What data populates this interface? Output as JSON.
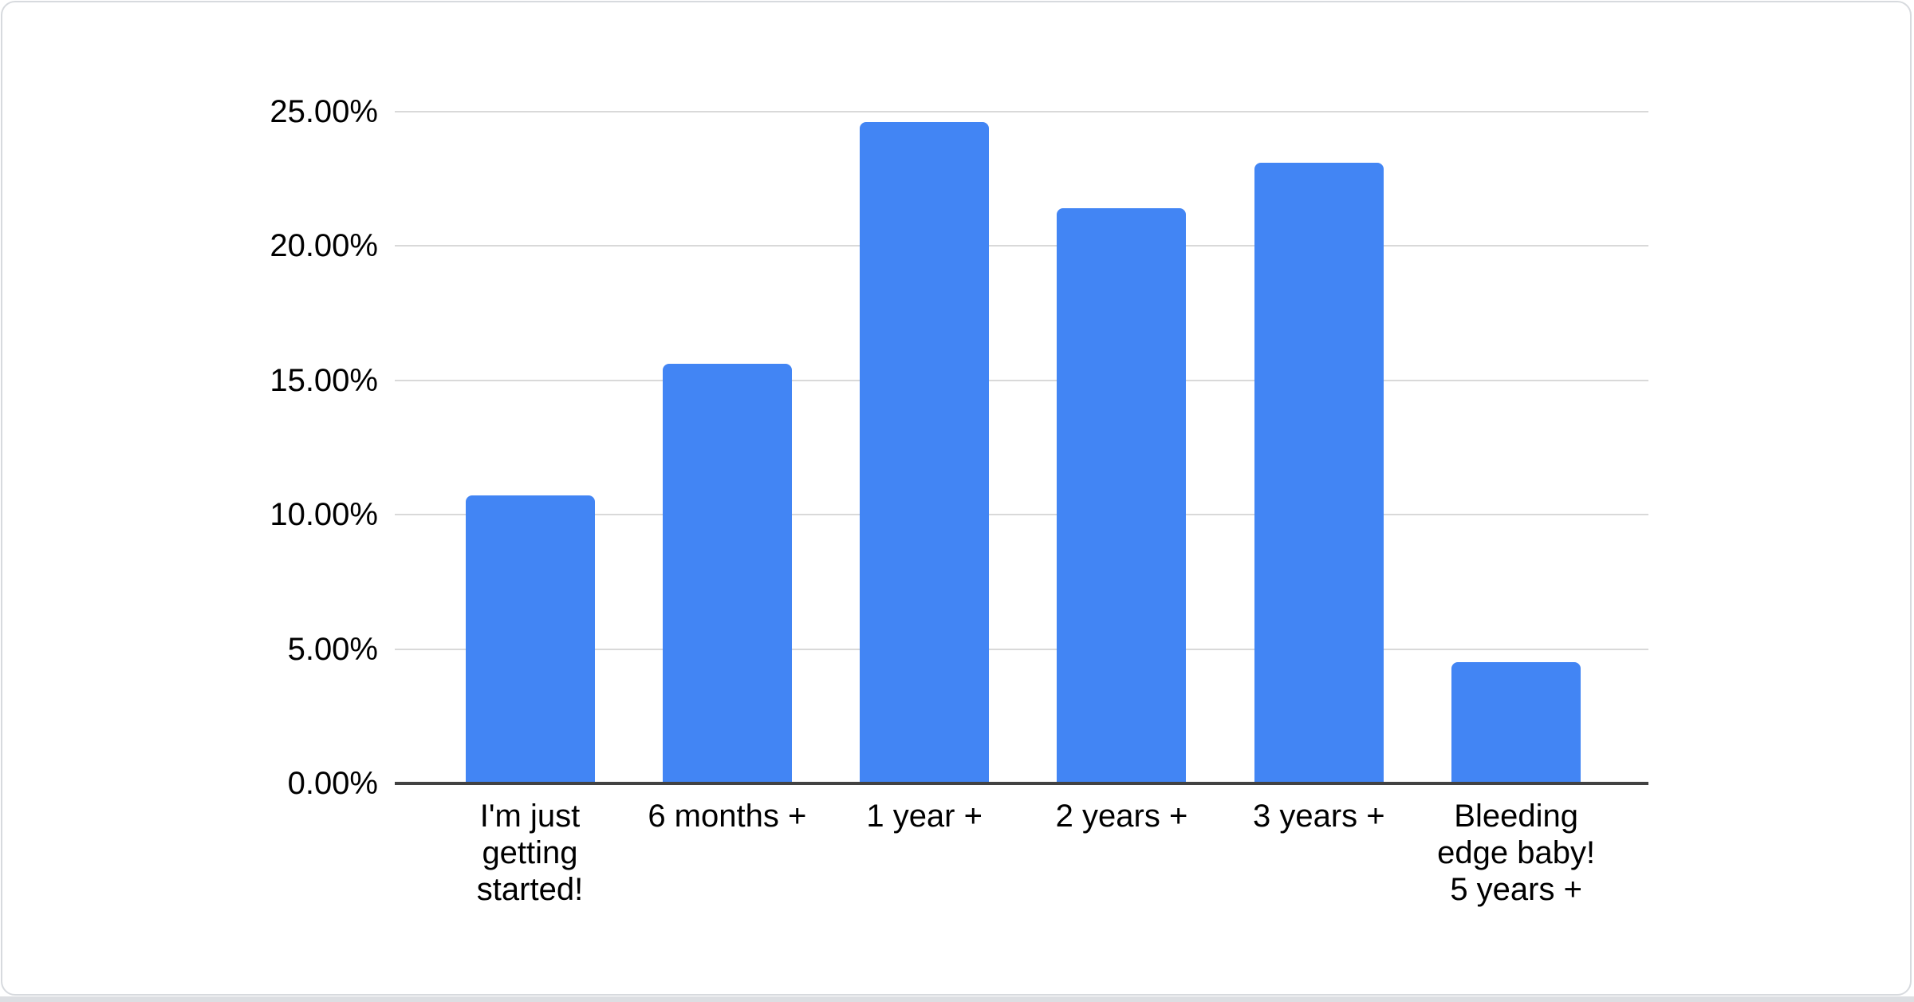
{
  "chart_data": {
    "type": "bar",
    "title": "",
    "categories": [
      "I'm just getting started!",
      "6 months +",
      "1 year +",
      "2 years +",
      "3 years +",
      "Bleeding edge baby! 5 years +"
    ],
    "categories_display": [
      "I'm just\ngetting\nstarted!",
      "6 months +",
      "1 year +",
      "2 years +",
      "3 years +",
      "Bleeding\nedge baby!\n5 years +"
    ],
    "values": [
      10.7,
      15.6,
      24.6,
      21.4,
      23.1,
      4.5
    ],
    "value_unit": "%",
    "y_ticks": [
      "0.00%",
      "5.00%",
      "10.00%",
      "15.00%",
      "20.00%",
      "25.00%"
    ],
    "y_tick_values": [
      0,
      5,
      10,
      15,
      20,
      25
    ],
    "ylim": [
      0,
      25
    ],
    "xlabel": "",
    "ylabel": "",
    "grid": true,
    "legend_position": "none",
    "colors": {
      "bar": "#4285f4",
      "gridline": "#d9d9d9",
      "axis_line": "#424242",
      "label_text": "#000000",
      "card_border": "#d7dade",
      "background": "#ffffff"
    }
  }
}
